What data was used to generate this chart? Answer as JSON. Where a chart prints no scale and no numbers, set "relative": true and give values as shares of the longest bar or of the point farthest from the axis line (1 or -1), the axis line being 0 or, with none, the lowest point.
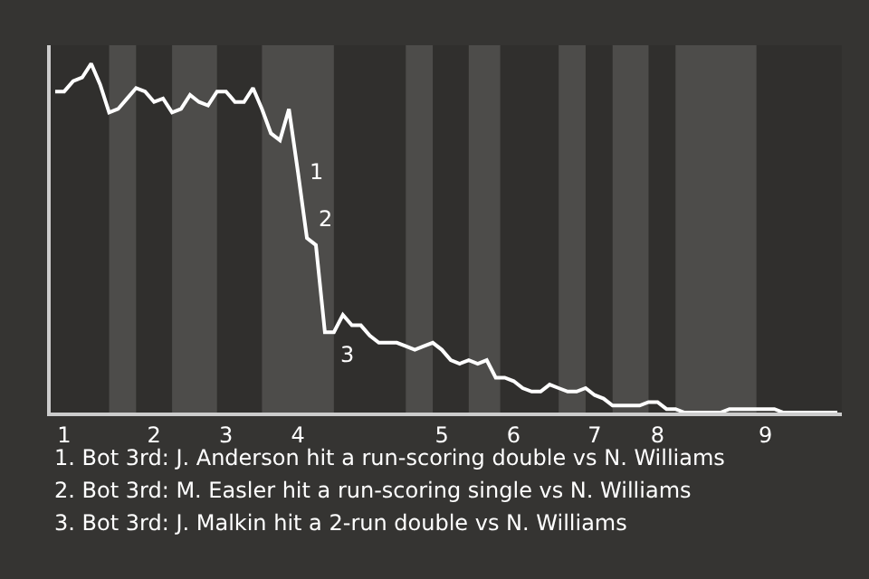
{
  "chart_data": {
    "type": "line",
    "relative": true,
    "marker": "none",
    "grid": false,
    "categories": [
      null,
      "1",
      null,
      null,
      null,
      null,
      null,
      null,
      null,
      null,
      null,
      "2",
      null,
      null,
      null,
      null,
      null,
      null,
      null,
      "3",
      null,
      null,
      null,
      null,
      null,
      null,
      null,
      "4",
      null,
      null,
      null,
      null,
      null,
      null,
      null,
      null,
      null,
      null,
      null,
      null,
      null,
      null,
      null,
      "5",
      null,
      null,
      null,
      null,
      null,
      null,
      null,
      "6",
      null,
      null,
      null,
      null,
      null,
      null,
      null,
      null,
      "7",
      null,
      null,
      null,
      null,
      null,
      null,
      "8",
      null,
      null,
      null,
      null,
      null,
      null,
      null,
      null,
      null,
      null,
      null,
      "9",
      null,
      null,
      null,
      null,
      null,
      null,
      null,
      null
    ],
    "series": [
      {
        "color": "#ffffff",
        "values": [
          0.92,
          0.92,
          0.95,
          0.96,
          1,
          0.94,
          0.86,
          0.87,
          0.9,
          0.93,
          0.92,
          0.89,
          0.9,
          0.86,
          0.87,
          0.91,
          0.89,
          0.88,
          0.92,
          0.92,
          0.89,
          0.89,
          0.93,
          0.87,
          0.8,
          0.78,
          0.87,
          0.69,
          0.5,
          0.48,
          0.23,
          0.23,
          0.28,
          0.25,
          0.25,
          0.22,
          0.2,
          0.2,
          0.2,
          0.19,
          0.18,
          0.19,
          0.2,
          0.18,
          0.15,
          0.14,
          0.15,
          0.14,
          0.15,
          0.1,
          0.1,
          0.09,
          0.07,
          0.06,
          0.06,
          0.08,
          0.07,
          0.06,
          0.06,
          0.07,
          0.05,
          0.04,
          0.02,
          0.02,
          0.02,
          0.02,
          0.03,
          0.03,
          0.01,
          0.01,
          0,
          0,
          0,
          0,
          0,
          0.01,
          0.01,
          0.01,
          0.01,
          0.01,
          0.01,
          0,
          0,
          0,
          0,
          0,
          0,
          0
        ]
      }
    ],
    "annotations": [
      "1",
      "2",
      "3",
      "1. Bot 3rd: J. Anderson hit a run-scoring double vs N. Williams",
      "2. Bot 3rd: M. Easler hit a run-scoring single vs N. Williams",
      "3. Bot 3rd: J. Malkin hit a 2-run double vs N. Williams"
    ]
  }
}
